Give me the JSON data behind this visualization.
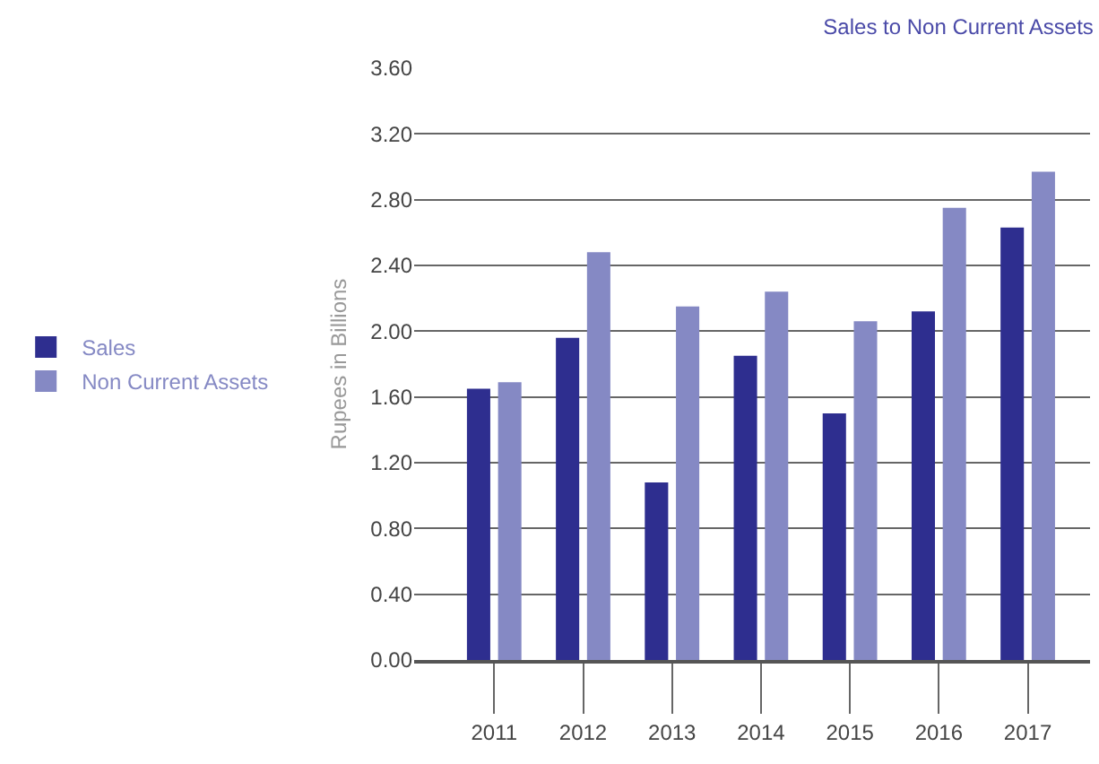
{
  "chart_data": {
    "type": "bar",
    "title": "Sales to Non Current Assets",
    "ylabel": "Rupees in Billions",
    "categories": [
      "2011",
      "2012",
      "2013",
      "2014",
      "2015",
      "2016",
      "2017"
    ],
    "series": [
      {
        "name": "Sales",
        "color": "#2e2e8f",
        "values": [
          1.65,
          1.96,
          1.08,
          1.85,
          1.5,
          2.12,
          2.63
        ]
      },
      {
        "name": "Non Current Assets",
        "color": "#8589c4",
        "values": [
          1.69,
          2.48,
          2.15,
          2.24,
          2.06,
          2.75,
          2.97
        ]
      }
    ],
    "ylim": [
      0,
      3.6
    ],
    "yticks": [
      {
        "value": 0,
        "label": "0.00"
      },
      {
        "value": 0.4,
        "label": "0.40"
      },
      {
        "value": 0.8,
        "label": "0.80"
      },
      {
        "value": 1.2,
        "label": "1.20"
      },
      {
        "value": 1.6,
        "label": "1.60"
      },
      {
        "value": 2,
        "label": "2.00"
      },
      {
        "value": 2.4,
        "label": "2.40"
      },
      {
        "value": 2.8,
        "label": "2.80"
      },
      {
        "value": 3.2,
        "label": "3.20"
      },
      {
        "value": 3.6,
        "label": "3.60"
      }
    ],
    "grid": "y",
    "legend": "left"
  }
}
